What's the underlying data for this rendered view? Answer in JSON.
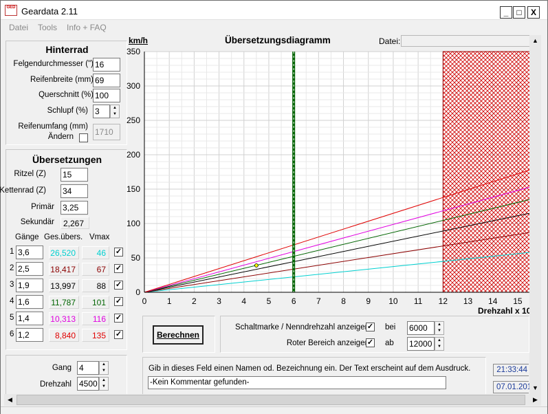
{
  "app": {
    "title": "Geardata 2.11",
    "icon_text": "GED"
  },
  "window_buttons": {
    "minimize": "_",
    "maximize": "□",
    "close": "X"
  },
  "menu": [
    {
      "label": "Datei"
    },
    {
      "label": "Tools"
    },
    {
      "label": "Info + FAQ"
    }
  ],
  "hinterrad": {
    "title": "Hinterrad",
    "felgen_label": "Felgendurchmesser (\")",
    "felgen_value": "16",
    "breite_label": "Reifenbreite (mm)",
    "breite_value": "69",
    "quer_label": "Querschnitt (%)",
    "quer_value": "100",
    "schlupf_label": "Schlupf (%)",
    "schlupf_value": "3",
    "umfang_label": "Reifenumfang (mm)",
    "aendern_label": "Ändern",
    "umfang_value": "1710"
  },
  "uebersetzungen": {
    "title": "Übersetzungen",
    "ritzel_label": "Ritzel (Z)",
    "ritzel_value": "15",
    "kettenrad_label": "Kettenrad (Z)",
    "kettenrad_value": "34",
    "primaer_label": "Primär",
    "primaer_value": "3,25",
    "sekundaer_label": "Sekundär",
    "sekundaer_value": "2,267",
    "col_gaenge": "Gänge",
    "col_ges": "Ges.übers.",
    "col_vmax": "Vmax",
    "gears": [
      {
        "n": "1",
        "ratio": "3,6",
        "ges": "26,520",
        "vmax": "46",
        "color": "#00d0d0",
        "checked": true
      },
      {
        "n": "2",
        "ratio": "2,5",
        "ges": "18,417",
        "vmax": "67",
        "color": "#8b0000",
        "checked": true
      },
      {
        "n": "3",
        "ratio": "1,9",
        "ges": "13,997",
        "vmax": "88",
        "color": "#000000",
        "checked": true
      },
      {
        "n": "4",
        "ratio": "1,6",
        "ges": "11,787",
        "vmax": "101",
        "color": "#006400",
        "checked": true
      },
      {
        "n": "5",
        "ratio": "1,4",
        "ges": "10,313",
        "vmax": "116",
        "color": "#e000e0",
        "checked": true
      },
      {
        "n": "6",
        "ratio": "1,2",
        "ges": "8,840",
        "vmax": "135",
        "color": "#e00000",
        "checked": true
      }
    ]
  },
  "gangpanel": {
    "gang_label": "Gang",
    "gang_value": "4",
    "drehzahl_label": "Drehzahl",
    "drehzahl_value": "4500"
  },
  "chart_header": {
    "title": "Übersetzungsdiagramm",
    "datei_label": "Datei:",
    "datei_value": ""
  },
  "controls": {
    "berechnen": "Berechnen",
    "schaltmarke_label": "Schaltmarke / Nenndrehzahl anzeigen",
    "schaltmarke_checked": true,
    "bei_label": "bei",
    "bei_value": "6000",
    "roter_label": "Roter Bereich anzeigen",
    "roter_checked": true,
    "ab_label": "ab",
    "ab_value": "12000"
  },
  "comment": {
    "hint": "Gib in dieses Feld einen Namen od. Bezeichnung ein. Der Text erscheint auf dem Ausdruck.",
    "value": "-Kein Kommentar gefunden-"
  },
  "clock": {
    "time": "21:33:44",
    "date": "07.01.201"
  },
  "chart_data": {
    "type": "line",
    "ylabel": "km/h",
    "xlabel": "Drehzahl x 10",
    "xlim": [
      0,
      15.5
    ],
    "ylim": [
      0,
      350
    ],
    "xticks": [
      "0",
      "1",
      "2",
      "3",
      "4",
      "5",
      "6",
      "7",
      "8",
      "9",
      "10",
      "11",
      "12",
      "13",
      "14",
      "15"
    ],
    "yticks": [
      "0",
      "50",
      "100",
      "150",
      "200",
      "250",
      "300",
      "350"
    ],
    "grid": true,
    "series": [
      {
        "gear": "1",
        "color": "#00d0d0",
        "x": [
          0,
          15.5
        ],
        "y": [
          0,
          58
        ]
      },
      {
        "gear": "2",
        "color": "#8b0000",
        "x": [
          0,
          15.5
        ],
        "y": [
          0,
          87
        ]
      },
      {
        "gear": "3",
        "color": "#000000",
        "x": [
          0,
          15.5
        ],
        "y": [
          0,
          115
        ]
      },
      {
        "gear": "4",
        "color": "#006400",
        "x": [
          0,
          15.5
        ],
        "y": [
          0,
          135
        ]
      },
      {
        "gear": "5",
        "color": "#e000e0",
        "x": [
          0,
          15.5
        ],
        "y": [
          0,
          153
        ]
      },
      {
        "gear": "6",
        "color": "#e00000",
        "x": [
          0,
          15.5
        ],
        "y": [
          0,
          178
        ]
      }
    ],
    "shift_marker_x": 6,
    "red_zone_from": 12,
    "operating_point": {
      "x": 4.5,
      "y": 39
    }
  }
}
